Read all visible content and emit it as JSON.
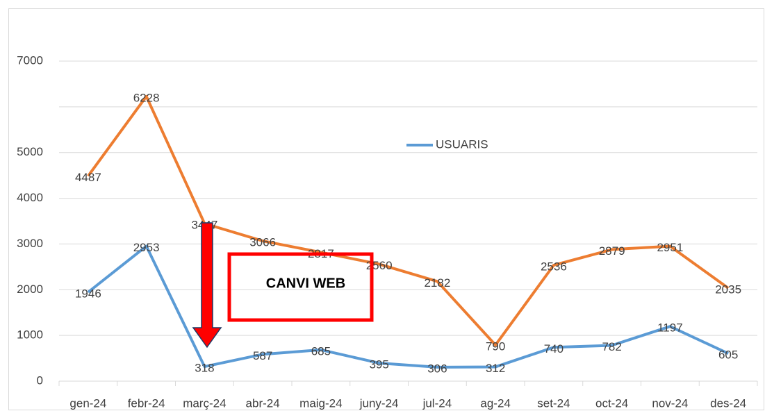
{
  "chart_data": {
    "type": "line",
    "categories": [
      "gen-24",
      "febr-24",
      "març-24",
      "abr-24",
      "maig-24",
      "juny-24",
      "jul-24",
      "ag-24",
      "set-24",
      "oct-24",
      "nov-24",
      "des-24"
    ],
    "series": [
      {
        "name": "USUARIS",
        "color": "#5b9bd5",
        "values": [
          1946,
          2953,
          318,
          587,
          685,
          395,
          306,
          312,
          740,
          782,
          1197,
          605
        ]
      },
      {
        "color": "#ed7d31",
        "values": [
          4487,
          6228,
          3447,
          3066,
          2817,
          2560,
          2182,
          790,
          2536,
          2879,
          2951,
          2035
        ]
      }
    ],
    "ylim": [
      0,
      7000
    ],
    "yticks": [
      0,
      1000,
      2000,
      3000,
      4000,
      5000,
      7000
    ],
    "ygrid": [
      1000,
      2000,
      3000,
      4000,
      5000,
      6000,
      7000
    ],
    "grid": true,
    "data_labels": true,
    "annotations": [
      "CANVI WEB"
    ]
  }
}
